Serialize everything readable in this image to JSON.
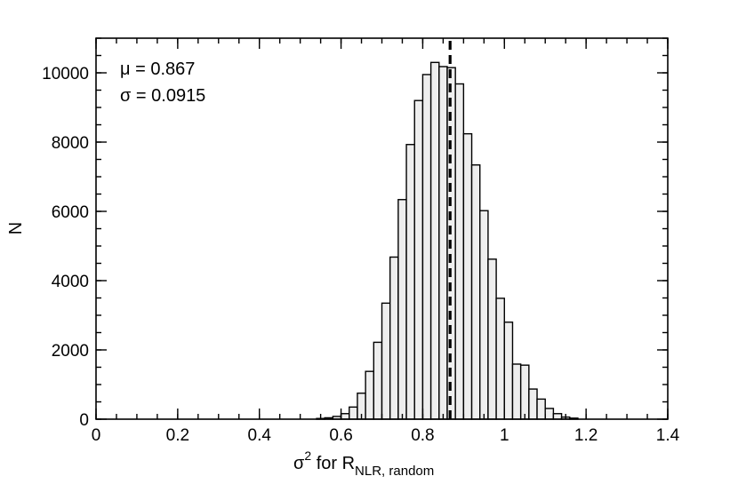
{
  "chart_data": {
    "type": "bar",
    "bin_width": 0.02,
    "bins_start": [
      0.54,
      0.56,
      0.58,
      0.6,
      0.62,
      0.64,
      0.66,
      0.68,
      0.7,
      0.72,
      0.74,
      0.76,
      0.78,
      0.8,
      0.82,
      0.84,
      0.86,
      0.88,
      0.9,
      0.92,
      0.94,
      0.96,
      0.98,
      1.0,
      1.02,
      1.04,
      1.06,
      1.08,
      1.1,
      1.12,
      1.14,
      1.16
    ],
    "values": [
      20,
      40,
      80,
      160,
      350,
      750,
      1380,
      2220,
      3350,
      4680,
      6340,
      7930,
      9200,
      9950,
      10300,
      10180,
      10150,
      9680,
      8240,
      7340,
      6020,
      4620,
      3490,
      2800,
      1590,
      1560,
      870,
      580,
      310,
      160,
      60,
      30
    ],
    "mean_line_x": 0.867,
    "xlim": [
      0,
      1.4
    ],
    "ylim": [
      0,
      11000
    ],
    "xticks": [
      0,
      0.2,
      0.4,
      0.6,
      0.8,
      1,
      1.2,
      1.4
    ],
    "xtick_labels": [
      "0",
      "0.2",
      "0.4",
      "0.6",
      "0.8",
      "1",
      "1.2",
      "1.4"
    ],
    "yticks": [
      0,
      2000,
      4000,
      6000,
      8000,
      10000
    ],
    "ytick_labels": [
      "0",
      "2000",
      "4000",
      "6000",
      "8000",
      "10000"
    ],
    "x_minor_step": 0.05,
    "y_minor_step": 500,
    "ylabel": "N",
    "xlabel": {
      "prefix": "σ",
      "superscript": "2",
      "middle": " for R",
      "subscript": "NLR, random"
    },
    "annotations": [
      "μ = 0.867",
      "σ = 0.0915"
    ],
    "bar_fill": "#eeeeee",
    "bar_stroke": "#000000",
    "grid": false
  }
}
